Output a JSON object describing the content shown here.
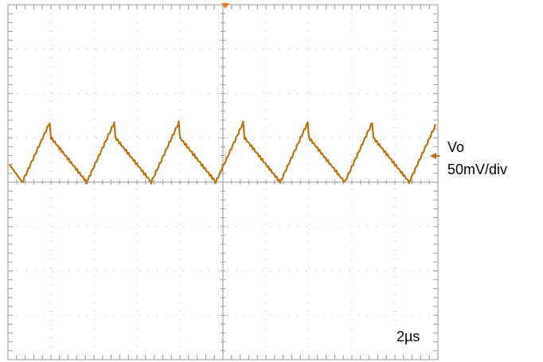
{
  "labels": {
    "channel": "Vo",
    "scale": "50mV/div",
    "timebase": "2µs"
  }
}
